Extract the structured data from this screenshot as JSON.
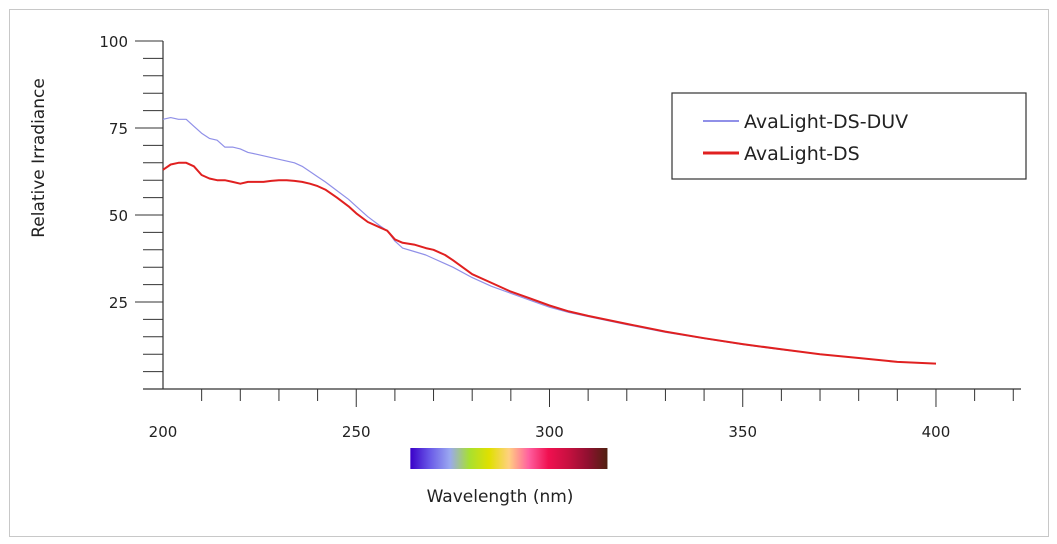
{
  "chart_data": {
    "type": "line",
    "title": "",
    "xlabel": "Wavelength (nm)",
    "ylabel": "Relative Irradiance",
    "xlim": [
      200,
      422
    ],
    "ylim": [
      0,
      100
    ],
    "xticks": [
      200,
      250,
      300,
      350,
      400
    ],
    "xtick_labels": [
      "200",
      "250",
      "300",
      "350",
      "400"
    ],
    "yticks": [
      25,
      50,
      75,
      100
    ],
    "ytick_labels": [
      "25",
      "50",
      "75",
      "100"
    ],
    "y_minor_step": 5,
    "grid": false,
    "legend": "top-right",
    "series": [
      {
        "name": "AvaLight-DS-DUV",
        "color": "#9090e8",
        "x": [
          200,
          202,
          204,
          206,
          208,
          210,
          212,
          214,
          216,
          218,
          220,
          222,
          224,
          226,
          228,
          230,
          232,
          234,
          236,
          238,
          240,
          242,
          245,
          248,
          250,
          253,
          256,
          258,
          260,
          262,
          265,
          268,
          270,
          273,
          275,
          280,
          285,
          290,
          295,
          300,
          305,
          310,
          320,
          330,
          340,
          350,
          360,
          370,
          380,
          390,
          400
        ],
        "y": [
          77.5,
          78,
          77.5,
          77.5,
          75.5,
          73.5,
          72,
          71.5,
          69.5,
          69.5,
          69,
          68,
          67.5,
          67,
          66.5,
          66,
          65.5,
          65,
          64,
          62.5,
          61,
          59.5,
          57,
          54.5,
          52.5,
          49.5,
          47,
          45.5,
          42.5,
          40.5,
          39.5,
          38.5,
          37.5,
          36,
          35,
          32,
          29.5,
          27.5,
          25.5,
          23.5,
          22,
          20.8,
          18.5,
          16.3,
          14.5,
          12.8,
          11.3,
          10,
          8.9,
          7.8,
          7.3
        ]
      },
      {
        "name": "AvaLight-DS",
        "color": "#e02020",
        "x": [
          200,
          202,
          204,
          206,
          208,
          210,
          212,
          214,
          216,
          218,
          220,
          222,
          224,
          226,
          228,
          230,
          232,
          234,
          236,
          238,
          240,
          242,
          245,
          248,
          250,
          253,
          256,
          258,
          260,
          262,
          265,
          268,
          270,
          273,
          275,
          280,
          285,
          290,
          295,
          300,
          305,
          310,
          320,
          330,
          340,
          350,
          360,
          370,
          380,
          390,
          400
        ],
        "y": [
          63,
          64.5,
          65,
          65,
          64,
          61.5,
          60.5,
          60,
          60,
          59.5,
          59,
          59.5,
          59.5,
          59.5,
          59.8,
          60,
          60,
          59.8,
          59.5,
          59,
          58.3,
          57.3,
          55,
          52.5,
          50.5,
          48,
          46.5,
          45.5,
          43,
          42,
          41.5,
          40.5,
          40,
          38.5,
          37,
          33,
          30.5,
          28,
          26,
          24,
          22.3,
          21,
          18.7,
          16.5,
          14.6,
          12.9,
          11.4,
          10,
          8.9,
          7.8,
          7.3
        ]
      }
    ]
  },
  "spectrum_bar": {
    "x_range": [
      264,
      315
    ],
    "stops": [
      "#3a00c8",
      "#6a5ae8",
      "#9aa8f0",
      "#a8e030",
      "#e0e000",
      "#ffd080",
      "#ff60a0",
      "#f01050",
      "#c81040",
      "#901030",
      "#502010"
    ]
  }
}
